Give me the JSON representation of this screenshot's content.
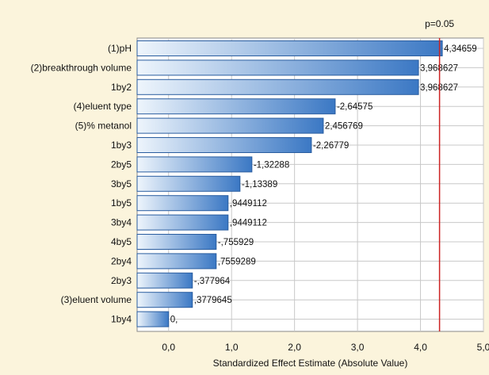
{
  "chart_data": {
    "type": "bar",
    "orientation": "horizontal",
    "xlabel": "Standardized Effect Estimate (Absolute Value)",
    "xlim": [
      -0.5,
      5.0
    ],
    "xticks": [
      0.0,
      1.0,
      2.0,
      3.0,
      4.0,
      5.0
    ],
    "xtick_labels": [
      "0,0",
      "1,0",
      "2,0",
      "3,0",
      "4,0",
      "5,0"
    ],
    "grid": true,
    "reference_line": {
      "value": 4.30265,
      "label": "p=0.05",
      "color": "#cc2222"
    },
    "categories": [
      "(1)pH",
      "(2)breakthrough volume",
      "1by2",
      "(4)eluent type",
      "(5)% metanol",
      "1by3",
      "2by5",
      "3by5",
      "1by5",
      "3by4",
      "4by5",
      "2by4",
      "2by3",
      "(3)eluent volume",
      "1by4"
    ],
    "values": [
      4.34659,
      3.968627,
      3.968627,
      2.64575,
      2.456769,
      2.26779,
      1.32288,
      1.13389,
      0.9449112,
      0.9449112,
      0.755929,
      0.7559289,
      0.377964,
      0.3779645,
      0.0
    ],
    "data_labels": [
      "4,34659",
      "3,968627",
      "3,968627",
      "-2,64575",
      "2,456769",
      "-2,26779",
      "-1,32288",
      "-1,13389",
      ",9449112",
      ",9449112",
      "-,755929",
      ",7559289",
      "-,377964",
      ",3779645",
      "0,"
    ],
    "colors": {
      "bar_dark": "#3b78c4",
      "bar_light": "#eef5fc",
      "bar_edge": "#2a5d9f",
      "grid": "#c8c8c8",
      "plot_bg": "#ffffff"
    }
  }
}
